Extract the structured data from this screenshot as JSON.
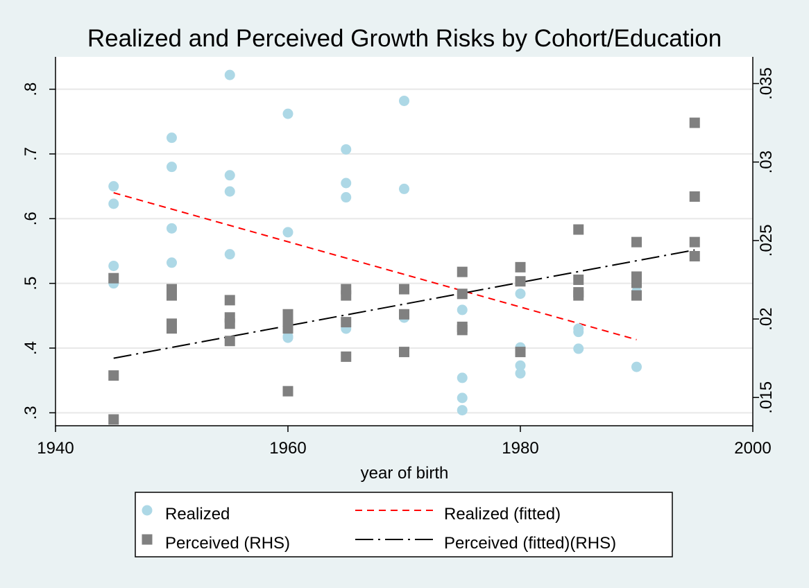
{
  "chart_data": {
    "type": "scatter",
    "title": "Realized and Perceived Growth Risks by Cohort/Education",
    "xlabel": "year of birth",
    "ylabel": "",
    "y2label": "",
    "xlim": [
      1940,
      2000
    ],
    "ylim": [
      0.28,
      0.85
    ],
    "y2lim": [
      0.0132,
      0.0367
    ],
    "x_ticks": [
      1940,
      1960,
      1980,
      2000
    ],
    "x_tick_labels": [
      "1940",
      "1960",
      "1980",
      "2000"
    ],
    "y_ticks": [
      0.3,
      0.4,
      0.5,
      0.6,
      0.7,
      0.8
    ],
    "y_tick_labels": [
      ".3",
      ".4",
      ".5",
      ".6",
      ".7",
      ".8"
    ],
    "y2_ticks": [
      0.015,
      0.02,
      0.025,
      0.03,
      0.035
    ],
    "y2_tick_labels": [
      ".015",
      ".02",
      ".025",
      ".03",
      ".035"
    ],
    "grid": true,
    "legend_position": "bottom",
    "series": [
      {
        "name": "Realized",
        "kind": "scatter",
        "axis": "left",
        "marker": "circle",
        "color": "#add8e6",
        "points": [
          [
            1945,
            0.65
          ],
          [
            1945,
            0.623
          ],
          [
            1945,
            0.527
          ],
          [
            1945,
            0.5
          ],
          [
            1950,
            0.725
          ],
          [
            1950,
            0.68
          ],
          [
            1950,
            0.585
          ],
          [
            1950,
            0.532
          ],
          [
            1955,
            0.822
          ],
          [
            1955,
            0.667
          ],
          [
            1955,
            0.642
          ],
          [
            1955,
            0.545
          ],
          [
            1960,
            0.762
          ],
          [
            1960,
            0.579
          ],
          [
            1960,
            0.418
          ],
          [
            1960,
            0.416
          ],
          [
            1965,
            0.707
          ],
          [
            1965,
            0.655
          ],
          [
            1965,
            0.633
          ],
          [
            1965,
            0.43
          ],
          [
            1970,
            0.782
          ],
          [
            1970,
            0.646
          ],
          [
            1970,
            0.447
          ],
          [
            1975,
            0.459
          ],
          [
            1975,
            0.354
          ],
          [
            1975,
            0.323
          ],
          [
            1975,
            0.304
          ],
          [
            1980,
            0.484
          ],
          [
            1980,
            0.401
          ],
          [
            1980,
            0.373
          ],
          [
            1980,
            0.361
          ],
          [
            1985,
            0.43
          ],
          [
            1985,
            0.425
          ],
          [
            1985,
            0.399
          ],
          [
            1990,
            0.505
          ],
          [
            1990,
            0.487
          ],
          [
            1990,
            0.371
          ]
        ]
      },
      {
        "name": "Perceived (RHS)",
        "kind": "scatter",
        "axis": "right",
        "marker": "square",
        "color": "#808080",
        "points": [
          [
            1945,
            0.0226
          ],
          [
            1945,
            0.0164
          ],
          [
            1945,
            0.0136
          ],
          [
            1950,
            0.0219
          ],
          [
            1950,
            0.0215
          ],
          [
            1950,
            0.0197
          ],
          [
            1950,
            0.0194
          ],
          [
            1955,
            0.0212
          ],
          [
            1955,
            0.0201
          ],
          [
            1955,
            0.0197
          ],
          [
            1955,
            0.0186
          ],
          [
            1960,
            0.0203
          ],
          [
            1960,
            0.0199
          ],
          [
            1960,
            0.0196
          ],
          [
            1960,
            0.0194
          ],
          [
            1960,
            0.0154
          ],
          [
            1965,
            0.0219
          ],
          [
            1965,
            0.0215
          ],
          [
            1965,
            0.0198
          ],
          [
            1965,
            0.0176
          ],
          [
            1970,
            0.0219
          ],
          [
            1970,
            0.0203
          ],
          [
            1970,
            0.0179
          ],
          [
            1975,
            0.023
          ],
          [
            1975,
            0.0216
          ],
          [
            1975,
            0.0195
          ],
          [
            1975,
            0.0193
          ],
          [
            1980,
            0.0233
          ],
          [
            1980,
            0.0224
          ],
          [
            1980,
            0.0179
          ],
          [
            1985,
            0.0257
          ],
          [
            1985,
            0.0225
          ],
          [
            1985,
            0.0217
          ],
          [
            1985,
            0.0215
          ],
          [
            1990,
            0.0249
          ],
          [
            1990,
            0.0227
          ],
          [
            1990,
            0.0223
          ],
          [
            1990,
            0.0215
          ],
          [
            1995,
            0.0325
          ],
          [
            1995,
            0.0278
          ],
          [
            1995,
            0.0249
          ],
          [
            1995,
            0.024
          ]
        ]
      },
      {
        "name": "Realized (fitted)",
        "kind": "line",
        "axis": "left",
        "style": "dashed",
        "color": "#ff0000",
        "points": [
          [
            1945,
            0.64
          ],
          [
            1990,
            0.413
          ]
        ]
      },
      {
        "name": "Perceived (fitted)(RHS)",
        "kind": "line",
        "axis": "right",
        "style": "dash-dot",
        "color": "#000000",
        "points": [
          [
            1945,
            0.0175
          ],
          [
            1995,
            0.0244
          ]
        ]
      }
    ]
  }
}
